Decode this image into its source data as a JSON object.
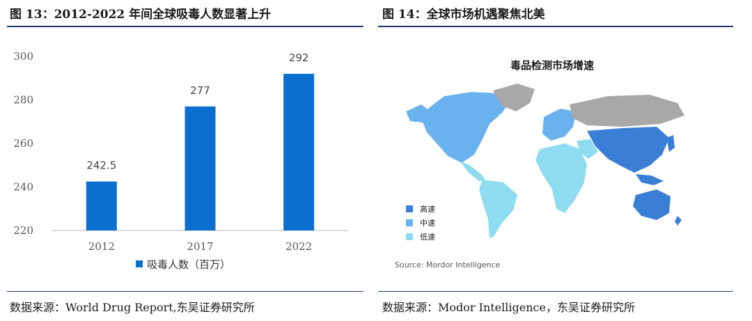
{
  "left_figure": {
    "title": "图 13：2012-2022 年间全球吸毒人数显著上升",
    "source": "数据来源：World Drug Report,东吴证券研究所"
  },
  "right_figure": {
    "title": "图 14：全球市场机遇聚焦北美",
    "source": "数据来源：Modor Intelligence，东吴证券研究所",
    "map_title": "毒品检测市场增速",
    "map_source": "Source: Mordor Intelligence",
    "legend": [
      {
        "label": "高速",
        "color": "#3a7fd5"
      },
      {
        "label": "中速",
        "color": "#6ab2ee"
      },
      {
        "label": "低速",
        "color": "#8fdcf0"
      }
    ],
    "no_data_color": "#a8a8a8"
  },
  "chart_data": {
    "type": "bar",
    "title": "",
    "categories": [
      "2012",
      "2017",
      "2022"
    ],
    "series": [
      {
        "name": "吸毒人数（百万）",
        "values": [
          242.5,
          277,
          292
        ],
        "color": "#0b6fd0"
      }
    ],
    "data_labels": [
      "242.5",
      "277",
      "292"
    ],
    "ylim": [
      220,
      300
    ],
    "yticks": [
      220,
      240,
      260,
      280,
      300
    ],
    "grid": false,
    "legend": "bottom-center"
  }
}
